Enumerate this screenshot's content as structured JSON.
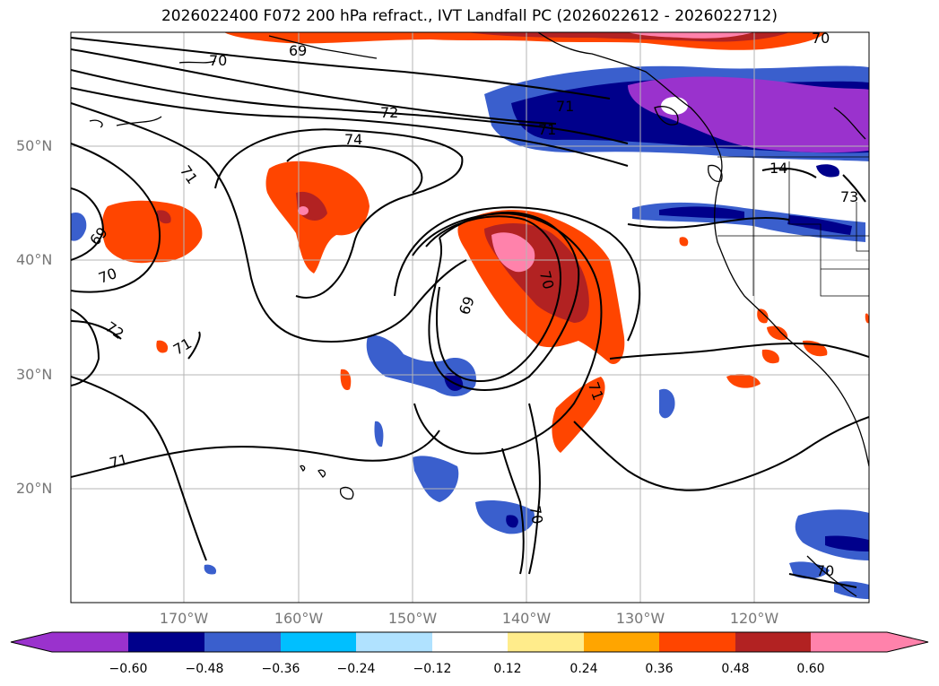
{
  "title": "2026022400 F072 200 hPa refract., IVT Landfall PC (2026022612 - 2026022712)",
  "map": {
    "projection": "cylindrical",
    "extent_lon": [
      -180,
      -110
    ],
    "extent_lat": [
      10,
      60
    ],
    "lat_labels": [
      "50°N",
      "40°N",
      "30°N",
      "20°N"
    ],
    "lon_labels": [
      "170°W",
      "160°W",
      "150°W",
      "140°W",
      "130°W",
      "120°W"
    ],
    "contour_labels": [
      "70",
      "69",
      "72",
      "71",
      "74",
      "71",
      "69",
      "70",
      "72",
      "71",
      "71",
      "69",
      "70",
      "71",
      "70",
      "71",
      "70",
      "70",
      "14",
      "73"
    ]
  },
  "colorbar": {
    "tick_labels": [
      "−0.60",
      "−0.48",
      "−0.36",
      "−0.24",
      "−0.12",
      "0.12",
      "0.24",
      "0.36",
      "0.48",
      "0.60"
    ],
    "colors": [
      "#9a32cd",
      "#00008b",
      "#3a5fcd",
      "#00bfff",
      "#b0e2ff",
      "#ffffff",
      "#ffec8b",
      "#ffa500",
      "#ff4500",
      "#b22222",
      "#ff82ab"
    ]
  }
}
